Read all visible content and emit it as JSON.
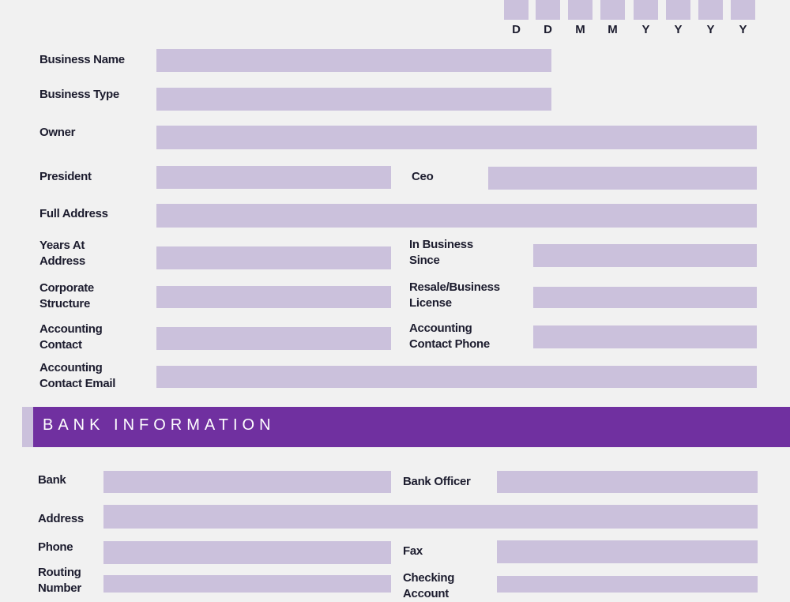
{
  "date_header": {
    "letters": [
      "D",
      "D",
      "M",
      "M",
      "Y",
      "Y",
      "Y",
      "Y"
    ]
  },
  "business": {
    "business_name_label": "Business Name",
    "business_type_label": "Business Type",
    "owner_label": "Owner",
    "president_label": "President",
    "ceo_label": "Ceo",
    "full_address_label": "Full Address",
    "years_at_address_label": [
      "Years At",
      "Address"
    ],
    "in_business_since_label": [
      "In Business",
      "Since"
    ],
    "corporate_structure_label": [
      "Corporate",
      "Structure"
    ],
    "resale_license_label": [
      "Resale/Business",
      "License"
    ],
    "accounting_contact_label": [
      "Accounting",
      "Contact"
    ],
    "accounting_contact_phone_label": [
      "Accounting",
      "Contact Phone"
    ],
    "accounting_contact_email_label": [
      "Accounting",
      "Contact Email"
    ]
  },
  "bank_section": {
    "title": "BANK INFORMATION",
    "bank_label": "Bank",
    "bank_officer_label": "Bank Officer",
    "address_label": "Address",
    "phone_label": "Phone",
    "fax_label": "Fax",
    "routing_number_label": [
      "Routing",
      "Number"
    ],
    "checking_account_label": [
      "Checking",
      "Account"
    ]
  },
  "colors": {
    "page_background": "#f1f1f1",
    "field_fill": "#cbc1dc",
    "banner": "#7030a0",
    "label_text": "#1c1c2e"
  }
}
